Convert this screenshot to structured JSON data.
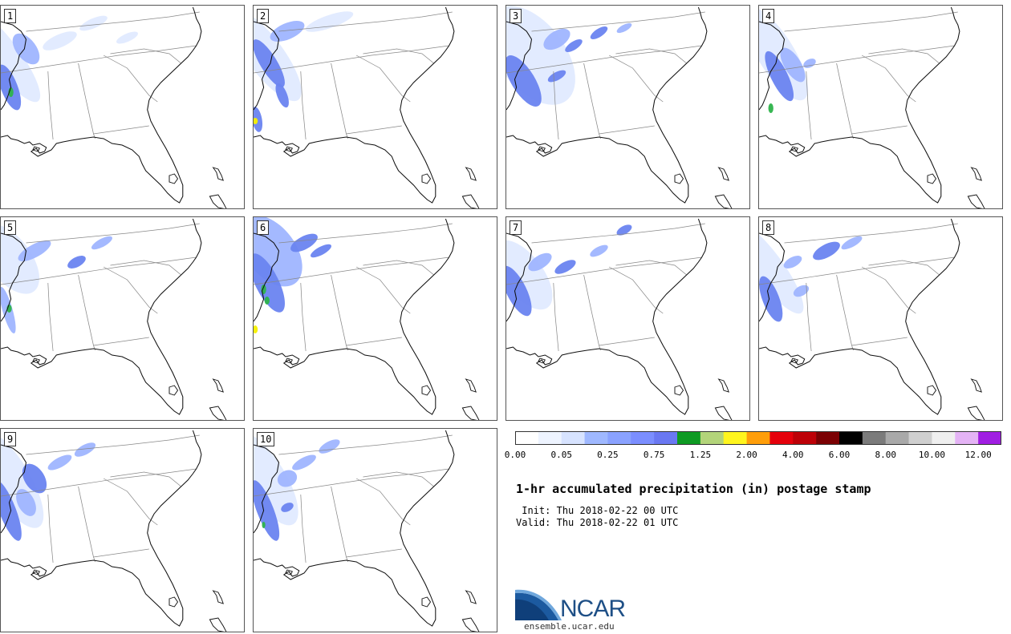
{
  "title": "1-hr accumulated precipitation (in) postage stamp",
  "init_label": " Init:",
  "init_value": "Thu 2018-02-22 00 UTC",
  "valid_label": "Valid:",
  "valid_value": "Thu 2018-02-22 01 UTC",
  "logo_text": "NCAR",
  "logo_url": "ensemble.ucar.edu",
  "members": [
    "1",
    "2",
    "3",
    "4",
    "5",
    "6",
    "7",
    "8",
    "9",
    "10"
  ],
  "colorbar": {
    "colors": [
      "#ffffff",
      "#eef4ff",
      "#d7e3ff",
      "#9fb8ff",
      "#8aa2ff",
      "#7b8eff",
      "#6a78f2",
      "#0e9a23",
      "#b3d47a",
      "#fff51e",
      "#ff9e0a",
      "#e5000b",
      "#bd0007",
      "#7b0003",
      "#000000",
      "#7b7b7b",
      "#a9a9a9",
      "#cfcfcf",
      "#efefef",
      "#e4b3f5",
      "#a01ee2"
    ],
    "tick_labels": [
      "0.00",
      "0.05",
      "0.25",
      "0.75",
      "1.25",
      "2.00",
      "4.00",
      "6.00",
      "8.00",
      "10.00",
      "12.00"
    ]
  },
  "colors": {
    "light": "#dde8ff",
    "medium": "#9fb5ff",
    "strong": "#6a84f0",
    "green": "#2db34a",
    "yellow": "#f5f000",
    "outline": "#111111",
    "boundary": "#888888"
  }
}
